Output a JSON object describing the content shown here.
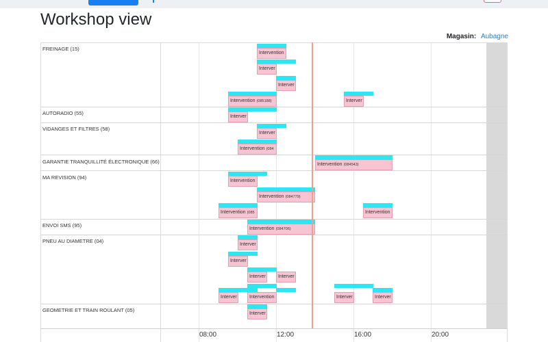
{
  "page": {
    "title": "Workshop view"
  },
  "store": {
    "label": "Magasin:",
    "value": "Aubagne"
  },
  "axis": {
    "ticks": [
      "08:00",
      "12:00",
      "16:00",
      "20:00"
    ]
  },
  "rows": [
    {
      "label": "FREINAGE (15)"
    },
    {
      "label": "AUTORADIO (55)"
    },
    {
      "label": "VIDANGES ET FILTRES (58)"
    },
    {
      "label": "GARANTIE TRANQUILLITÉ ÉLECTRONIQUE (66)"
    },
    {
      "label": "MA REVISION (94)"
    },
    {
      "label": "ENVOI SMS (95)"
    },
    {
      "label": "PNEU AU DIAMETRE (04)"
    },
    {
      "label": "GEOMETRIE ET TRAIN ROULANT (05)"
    }
  ],
  "bars": [
    {
      "text": "Intervention",
      "num": ""
    },
    {
      "text": "Interver",
      "num": ""
    },
    {
      "text": "Interver",
      "num": ""
    },
    {
      "text": "Intervention",
      "num": "(085188)"
    },
    {
      "text": "Interver",
      "num": ""
    },
    {
      "text": "Interver",
      "num": ""
    },
    {
      "text": "Interver",
      "num": ""
    },
    {
      "text": "Intervention",
      "num": "(084"
    },
    {
      "text": "Intervention",
      "num": "(084543)"
    },
    {
      "text": "Intervention",
      "num": ""
    },
    {
      "text": "Intervention",
      "num": "(084779)"
    },
    {
      "text": "Intervention",
      "num": "(085"
    },
    {
      "text": "Intervention",
      "num": ""
    },
    {
      "text": "Intervention",
      "num": "(084706)"
    },
    {
      "text": "Interver",
      "num": ""
    },
    {
      "text": "Interver",
      "num": ""
    },
    {
      "text": "Interver",
      "num": ""
    },
    {
      "text": "Interver",
      "num": ""
    },
    {
      "text": "Interver",
      "num": ""
    },
    {
      "text": "Intervention",
      "num": ""
    },
    {
      "text": "Interver",
      "num": ""
    },
    {
      "text": "Interver",
      "num": ""
    },
    {
      "text": "Interver",
      "num": ""
    }
  ],
  "colors": {
    "accent": "#1a7ff0",
    "planned": "#2de6f2",
    "actual": "#f8c4d2",
    "now_line": "#f0a08a"
  }
}
